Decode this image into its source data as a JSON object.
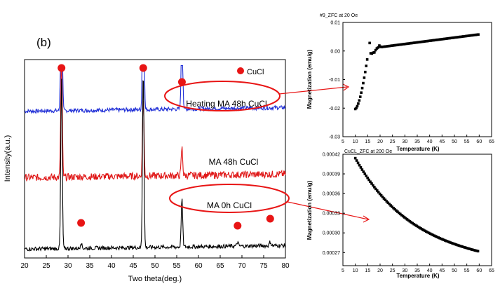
{
  "panel_label": "(b)",
  "chart_data": [
    {
      "type": "line",
      "xlabel": "Two theta(deg.)",
      "ylabel": "Intensity(a.u.)",
      "xlim": [
        20,
        80
      ],
      "xticks": [
        20,
        25,
        30,
        35,
        40,
        45,
        50,
        55,
        60,
        65,
        70,
        75,
        80
      ],
      "legend": {
        "marker": "red-circle",
        "label": "CuCl"
      },
      "series": [
        {
          "name": "Heating MA 48h CuCl",
          "color": "#1f2ed6",
          "baseline": 0.74,
          "noise": 0.01,
          "peaks": [
            [
              28.5,
              0.95
            ],
            [
              47.3,
              0.95
            ],
            [
              56.2,
              0.5
            ]
          ]
        },
        {
          "name": "MA 48h CuCl",
          "color": "#e01818",
          "baseline": 0.405,
          "noise": 0.018,
          "peaks": [
            [
              28.5,
              0.62
            ],
            [
              47.3,
              0.4
            ],
            [
              56.2,
              0.14
            ]
          ]
        },
        {
          "name": "MA 0h CuCl",
          "color": "#000000",
          "baseline": 0.045,
          "noise": 0.01,
          "peaks": [
            [
              28.5,
              0.86
            ],
            [
              47.3,
              0.9
            ],
            [
              56.2,
              0.24
            ],
            [
              33.0,
              0.03
            ],
            [
              69.0,
              0.02
            ],
            [
              76.5,
              0.02
            ]
          ]
        }
      ],
      "cucl_peak_markers": [
        28.5,
        47.3,
        56.2,
        33.0,
        69.0,
        76.5
      ],
      "annotations": [
        "Heating MA 48h CuCl",
        "MA 48h CuCl",
        "MA 0h CuCl"
      ]
    },
    {
      "type": "scatter",
      "title": "#9_ZFC at 20 Oe",
      "xlabel": "Temperature (K)",
      "ylabel": "Magnetization (emu/g)",
      "xlim": [
        5,
        65
      ],
      "ylim": [
        -0.03,
        0.01
      ],
      "xticks": [
        5,
        10,
        15,
        20,
        25,
        30,
        35,
        40,
        45,
        50,
        55,
        60,
        65
      ],
      "yticks": [
        "0.01",
        "0.00",
        "-0.01",
        "-0.02",
        "-0.03"
      ],
      "ytick_values": [
        0.01,
        0.0,
        -0.01,
        -0.02,
        -0.03
      ]
    },
    {
      "type": "scatter",
      "title": "CuCL_ZFC at 200 Oe",
      "xlabel": "Temperature (K)",
      "ylabel": "Magnetization (emu/g)",
      "xlim": [
        5,
        65
      ],
      "ylim": [
        0.00025,
        0.00042
      ],
      "xticks": [
        5,
        10,
        15,
        20,
        25,
        30,
        35,
        40,
        45,
        50,
        55,
        60,
        65
      ],
      "yticks": [
        "0.00042",
        "0.00039",
        "0.00036",
        "0.00033",
        "0.00030",
        "0.00027"
      ],
      "ytick_values": [
        0.00042,
        0.00039,
        0.00036,
        0.00033,
        0.0003,
        0.00027
      ]
    }
  ]
}
